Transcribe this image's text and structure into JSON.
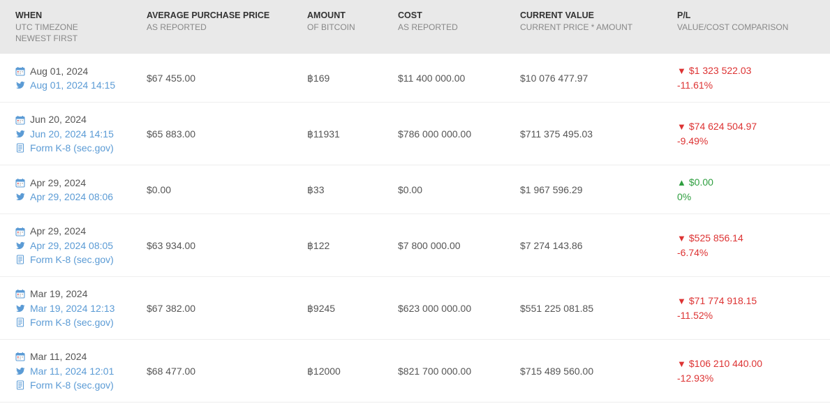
{
  "colors": {
    "header_bg": "#e9e9e9",
    "link": "#5b9bd5",
    "up": "#2e9e3f",
    "down": "#d33",
    "text": "#555",
    "border": "#eee"
  },
  "headers": {
    "when": {
      "title": "WHEN",
      "sub1": "UTC TIMEZONE",
      "sub2": "NEWEST FIRST"
    },
    "price": {
      "title": "AVERAGE PURCHASE PRICE",
      "sub": "AS REPORTED"
    },
    "amount": {
      "title": "AMOUNT",
      "sub": "OF BITCOIN"
    },
    "cost": {
      "title": "COST",
      "sub": "AS REPORTED"
    },
    "value": {
      "title": "CURRENT VALUE",
      "sub": "CURRENT PRICE * AMOUNT"
    },
    "pl": {
      "title": "P/L",
      "sub": "VALUE/COST COMPARISON"
    }
  },
  "form_label": "Form K-8 (sec.gov)",
  "rows": [
    {
      "date": "Aug 01, 2024",
      "tweet": "Aug 01, 2024 14:15",
      "form": false,
      "price": "$67 455.00",
      "amount": "฿169",
      "cost": "$11 400 000.00",
      "value": "$10 076 477.97",
      "pl_dir": "down",
      "pl_amount": "$1 323 522.03",
      "pl_pct": "-11.61%"
    },
    {
      "date": "Jun 20, 2024",
      "tweet": "Jun 20, 2024 14:15",
      "form": true,
      "price": "$65 883.00",
      "amount": "฿11931",
      "cost": "$786 000 000.00",
      "value": "$711 375 495.03",
      "pl_dir": "down",
      "pl_amount": "$74 624 504.97",
      "pl_pct": "-9.49%"
    },
    {
      "date": "Apr 29, 2024",
      "tweet": "Apr 29, 2024 08:06",
      "form": false,
      "price": "$0.00",
      "amount": "฿33",
      "cost": "$0.00",
      "value": "$1 967 596.29",
      "pl_dir": "up",
      "pl_amount": "$0.00",
      "pl_pct": "0%"
    },
    {
      "date": "Apr 29, 2024",
      "tweet": "Apr 29, 2024 08:05",
      "form": true,
      "price": "$63 934.00",
      "amount": "฿122",
      "cost": "$7 800 000.00",
      "value": "$7 274 143.86",
      "pl_dir": "down",
      "pl_amount": "$525 856.14",
      "pl_pct": "-6.74%"
    },
    {
      "date": "Mar 19, 2024",
      "tweet": "Mar 19, 2024 12:13",
      "form": true,
      "price": "$67 382.00",
      "amount": "฿9245",
      "cost": "$623 000 000.00",
      "value": "$551 225 081.85",
      "pl_dir": "down",
      "pl_amount": "$71 774 918.15",
      "pl_pct": "-11.52%"
    },
    {
      "date": "Mar 11, 2024",
      "tweet": "Mar 11, 2024 12:01",
      "form": true,
      "price": "$68 477.00",
      "amount": "฿12000",
      "cost": "$821 700 000.00",
      "value": "$715 489 560.00",
      "pl_dir": "down",
      "pl_amount": "$106 210 440.00",
      "pl_pct": "-12.93%"
    }
  ]
}
